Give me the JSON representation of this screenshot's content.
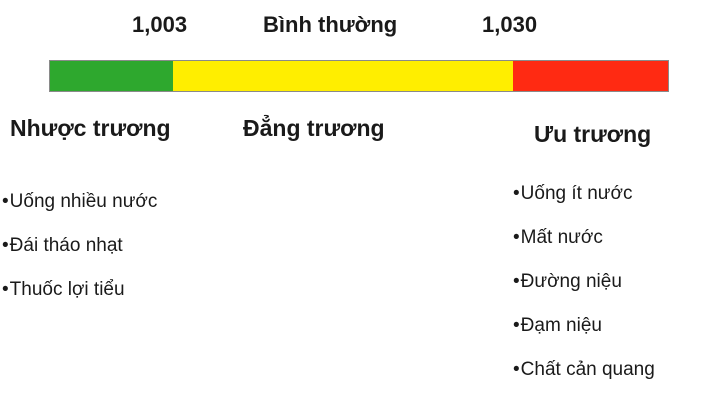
{
  "scale": {
    "low_value": "1,003",
    "normal_label": "Bình thường",
    "high_value": "1,030"
  },
  "bar": {
    "colors": {
      "hypotonic": "#2ea82e",
      "isotonic": "#ffee00",
      "hypertonic": "#ff2a12"
    }
  },
  "categories": {
    "hypotonic": {
      "title": "Nhược trương",
      "items": [
        "Uống nhiều nước",
        "Đái tháo nhạt",
        "Thuốc lợi tiểu"
      ]
    },
    "isotonic": {
      "title": "Đẳng trương"
    },
    "hypertonic": {
      "title": "Ưu trương",
      "items": [
        "Uống ít nước",
        "Mất nước",
        "Đường niệu",
        "Đạm niệu",
        "Chất cản quang"
      ]
    }
  }
}
